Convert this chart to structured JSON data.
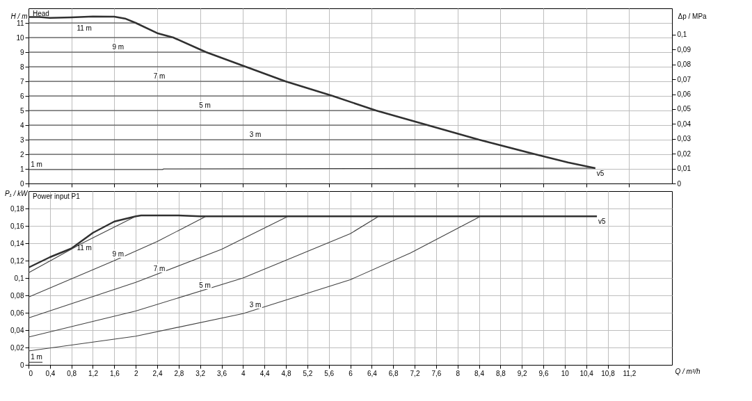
{
  "chart_data": [
    {
      "type": "line",
      "ylabel": "H / m",
      "y2label": "Δp / MPa",
      "xlim": [
        0,
        12
      ],
      "ylim": [
        0,
        12
      ],
      "y2lim": [
        0,
        0.1177
      ],
      "xticks": [
        0,
        0.4,
        0.8,
        1.2,
        1.6,
        2,
        2.4,
        2.8,
        3.2,
        3.6,
        4,
        4.4,
        4.8,
        5.2,
        5.6,
        6,
        6.4,
        6.8,
        7.2,
        7.6,
        8,
        8.4,
        8.8,
        9.2,
        9.6,
        10,
        10.4,
        10.8,
        11.2
      ],
      "yticks": [
        0,
        1,
        2,
        3,
        4,
        5,
        6,
        7,
        8,
        9,
        10,
        11
      ],
      "y2ticks": [
        0,
        {
          "value": 0.01,
          "label": "0,01"
        },
        {
          "value": 0.02,
          "label": "0,02"
        },
        {
          "value": 0.03,
          "label": "0,03"
        },
        {
          "value": 0.04,
          "label": "0,04"
        },
        {
          "value": 0.05,
          "label": "0,05"
        },
        {
          "value": 0.06,
          "label": "0,06"
        },
        {
          "value": 0.07,
          "label": "0,07"
        },
        {
          "value": 0.08,
          "label": "0,08"
        },
        {
          "value": 0.09,
          "label": "0,09"
        },
        {
          "value": 0.1,
          "label": "0,1"
        }
      ],
      "tick_labels": "y",
      "grid": true,
      "marker": "none",
      "line_style": "solid",
      "series": [
        {
          "color": "#303030",
          "x": [
            0,
            0.2,
            0.4,
            0.8,
            1.2,
            1.6,
            1.8,
            2.0,
            2.4,
            2.7,
            3.31,
            4.05,
            4.79,
            5.67,
            6.48,
            7.44,
            8.4,
            9.45,
            10.06,
            10.57
          ],
          "values": [
            11.41,
            11.41,
            11.34,
            11.38,
            11.44,
            11.43,
            11.3,
            11.0,
            10.3,
            10,
            9,
            8,
            7,
            6,
            5,
            4,
            3,
            2,
            1.44,
            1.05
          ]
        },
        {
          "color": "#404040",
          "x": [
            0,
            2.0
          ],
          "values": [
            11,
            11
          ]
        },
        {
          "color": "#404040",
          "x": [
            0,
            2.7
          ],
          "values": [
            10,
            10
          ]
        },
        {
          "color": "#404040",
          "x": [
            0,
            3.31
          ],
          "values": [
            9,
            9
          ]
        },
        {
          "color": "#404040",
          "x": [
            0,
            4.05
          ],
          "values": [
            8,
            8
          ]
        },
        {
          "color": "#404040",
          "x": [
            0,
            4.79
          ],
          "values": [
            7,
            7
          ]
        },
        {
          "color": "#404040",
          "x": [
            0,
            5.67
          ],
          "values": [
            6,
            6
          ]
        },
        {
          "color": "#404040",
          "x": [
            0,
            6.48
          ],
          "values": [
            5,
            5
          ]
        },
        {
          "color": "#404040",
          "x": [
            0,
            7.44
          ],
          "values": [
            4,
            4
          ]
        },
        {
          "color": "#404040",
          "x": [
            0,
            8.4
          ],
          "values": [
            3,
            3
          ]
        },
        {
          "color": "#404040",
          "x": [
            0,
            9.45
          ],
          "values": [
            2,
            2
          ]
        },
        {
          "color": "#303030",
          "x": [
            0,
            2.5,
            2.52,
            10.57
          ],
          "values": [
            0.95,
            0.95,
            1.0,
            1.05
          ]
        }
      ],
      "annotations": [
        "Head",
        {
          "text": "11 m",
          "x": 1.04,
          "y": 11
        },
        {
          "text": "9 m",
          "x": 1.67,
          "y": 9
        },
        {
          "text": "7 m",
          "x": 2.44,
          "y": 7
        },
        {
          "text": "5 m",
          "x": 3.29,
          "y": 5
        },
        {
          "text": "3 m",
          "x": 4.23,
          "y": 3
        },
        {
          "text": "1 m",
          "x": 0.15,
          "y": 0.95
        },
        {
          "text": "v5",
          "x": 10.57,
          "y": 1.05
        }
      ]
    },
    {
      "type": "line",
      "xlabel": "Q / m³/h",
      "ylabel": "P₁ / kW",
      "xlim": [
        0,
        12
      ],
      "ylim": [
        0,
        0.2
      ],
      "xticks": [
        0,
        {
          "value": 0.4,
          "label": "0,4"
        },
        {
          "value": 0.8,
          "label": "0,8"
        },
        {
          "value": 1.2,
          "label": "1,2"
        },
        {
          "value": 1.6,
          "label": "1,6"
        },
        2,
        {
          "value": 2.4,
          "label": "2,4"
        },
        {
          "value": 2.8,
          "label": "2,8"
        },
        {
          "value": 3.2,
          "label": "3,2"
        },
        {
          "value": 3.6,
          "label": "3,6"
        },
        4,
        {
          "value": 4.4,
          "label": "4,4"
        },
        {
          "value": 4.8,
          "label": "4,8"
        },
        {
          "value": 5.2,
          "label": "5,2"
        },
        {
          "value": 5.6,
          "label": "5,6"
        },
        6,
        {
          "value": 6.4,
          "label": "6,4"
        },
        {
          "value": 6.8,
          "label": "6,8"
        },
        {
          "value": 7.2,
          "label": "7,2"
        },
        {
          "value": 7.6,
          "label": "7,6"
        },
        8,
        {
          "value": 8.4,
          "label": "8,4"
        },
        {
          "value": 8.8,
          "label": "8,8"
        },
        {
          "value": 9.2,
          "label": "9,2"
        },
        {
          "value": 9.6,
          "label": "9,6"
        },
        10,
        {
          "value": 10.4,
          "label": "10,4"
        },
        {
          "value": 10.8,
          "label": "10,8"
        },
        {
          "value": 11.2,
          "label": "11,2"
        }
      ],
      "yticks": [
        0,
        {
          "value": 0.02,
          "label": "0,02"
        },
        {
          "value": 0.04,
          "label": "0,04"
        },
        {
          "value": 0.06,
          "label": "0,06"
        },
        {
          "value": 0.08,
          "label": "0,08"
        },
        {
          "value": 0.1,
          "label": "0,1"
        },
        {
          "value": 0.12,
          "label": "0,12"
        },
        {
          "value": 0.14,
          "label": "0,14"
        },
        {
          "value": 0.16,
          "label": "0,16"
        },
        {
          "value": 0.18,
          "label": "0,18"
        }
      ],
      "grid": true,
      "marker": "none",
      "line_style": "solid",
      "series": [
        {
          "color": "#303030",
          "x": [
            0,
            0.4,
            0.8,
            1.2,
            1.6,
            2.0,
            2.1,
            2.8,
            3.2,
            10.6
          ],
          "values": [
            0.112,
            0.124,
            0.134,
            0.152,
            0.165,
            0.171,
            0.172,
            0.172,
            0.171,
            0.171
          ]
        },
        {
          "color": "#404040",
          "x": [
            0,
            1.0,
            2.0
          ],
          "values": [
            0.106,
            0.14,
            0.171
          ]
        },
        {
          "color": "#404040",
          "x": [
            0,
            1.6,
            2.4,
            3.31
          ],
          "values": [
            0.078,
            0.12,
            0.142,
            0.171
          ]
        },
        {
          "color": "#404040",
          "x": [
            0,
            2.0,
            3.6,
            4.84
          ],
          "values": [
            0.054,
            0.095,
            0.133,
            0.171
          ]
        },
        {
          "color": "#404040",
          "x": [
            0,
            2.0,
            4.0,
            6.0,
            6.53
          ],
          "values": [
            0.032,
            0.062,
            0.1,
            0.151,
            0.171
          ]
        },
        {
          "color": "#404040",
          "x": [
            0,
            2.0,
            4.0,
            6.0,
            7.13,
            8.43
          ],
          "values": [
            0.016,
            0.033,
            0.059,
            0.098,
            0.129,
            0.171
          ]
        },
        {
          "color": "#303030",
          "x": [
            0,
            0.26
          ],
          "values": [
            0.003,
            0.003
          ]
        }
      ],
      "annotations": [
        "Power input P1",
        {
          "text": "11 m",
          "x": 1.04,
          "y": 0.141
        },
        {
          "text": "9 m",
          "x": 1.67,
          "y": 0.122
        },
        {
          "text": "7 m",
          "x": 2.44,
          "y": 0.105
        },
        {
          "text": "5 m",
          "x": 3.29,
          "y": 0.086
        },
        {
          "text": "3 m",
          "x": 4.23,
          "y": 0.063
        },
        {
          "text": "1 m",
          "x": 0.15,
          "y": 0.003
        },
        {
          "text": "v5",
          "x": 10.6,
          "y": 0.171
        }
      ]
    }
  ]
}
